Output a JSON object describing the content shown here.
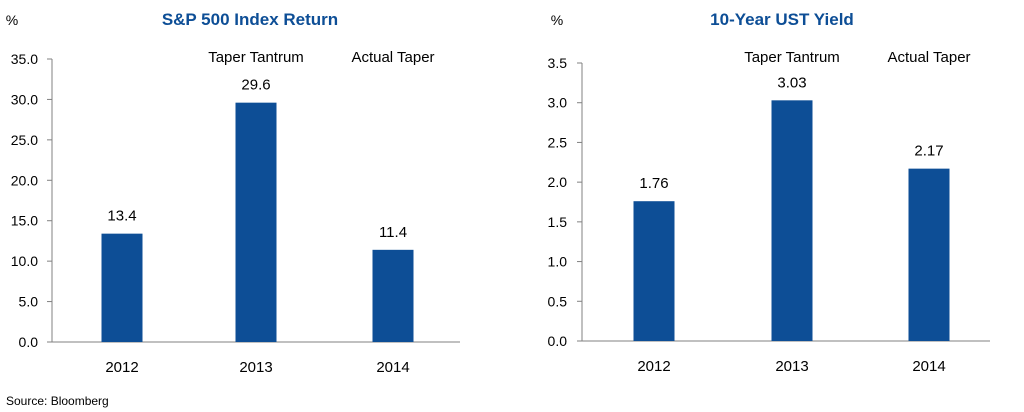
{
  "chart_data": [
    {
      "type": "bar",
      "title": "S&P 500 Index Return",
      "unit_label": "%",
      "categories": [
        "2012",
        "2013",
        "2014"
      ],
      "values": [
        13.4,
        29.6,
        11.4
      ],
      "value_labels": [
        "13.4",
        "29.6",
        "11.4"
      ],
      "category_annotations": [
        "",
        "Taper Tantrum",
        "Actual Taper"
      ],
      "ylim": [
        0,
        35
      ],
      "yticks": [
        0,
        5,
        10,
        15,
        20,
        25,
        30,
        35
      ],
      "ytick_labels": [
        "0.0",
        "5.0",
        "10.0",
        "15.0",
        "20.0",
        "25.0",
        "30.0",
        "35.0"
      ],
      "grid": false,
      "bar_color": "#0D4E96"
    },
    {
      "type": "bar",
      "title": "10-Year UST Yield",
      "unit_label": "%",
      "categories": [
        "2012",
        "2013",
        "2014"
      ],
      "values": [
        1.76,
        3.03,
        2.17
      ],
      "value_labels": [
        "1.76",
        "3.03",
        "2.17"
      ],
      "category_annotations": [
        "",
        "Taper Tantrum",
        "Actual Taper"
      ],
      "ylim": [
        0,
        3.5
      ],
      "yticks": [
        0,
        0.5,
        1.0,
        1.5,
        2.0,
        2.5,
        3.0,
        3.5
      ],
      "ytick_labels": [
        "0.0",
        "0.5",
        "1.0",
        "1.5",
        "2.0",
        "2.5",
        "3.0",
        "3.5"
      ],
      "grid": false,
      "bar_color": "#0D4E96"
    }
  ],
  "footer": {
    "source": "Source: Bloomberg"
  }
}
